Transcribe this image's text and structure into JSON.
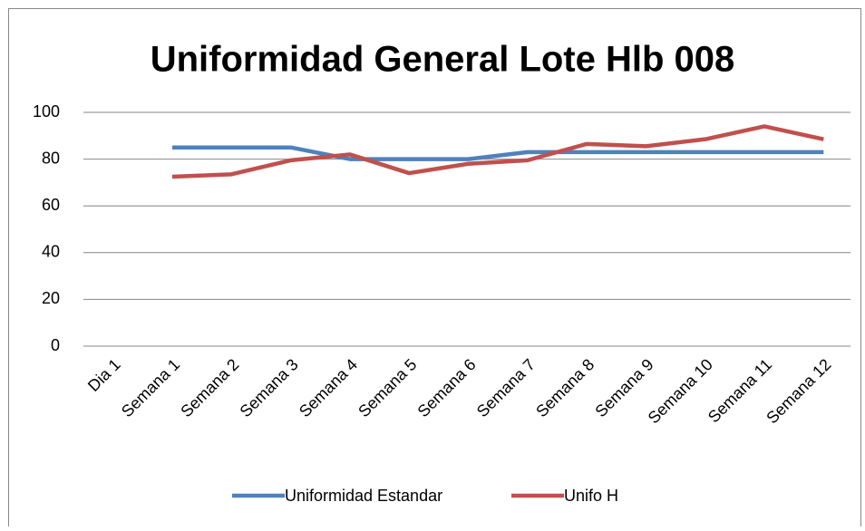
{
  "chart_data": {
    "type": "line",
    "title": "Uniformidad General Lote Hlb 008",
    "categories": [
      "Dia 1",
      "Semana 1",
      "Semana 2",
      "Semana 3",
      "Semana 4",
      "Semana 5",
      "Semana 6",
      "Semana 7",
      "Semana 8",
      "Semana 9",
      "Semana 10",
      "Semana 11",
      "Semana 12"
    ],
    "series": [
      {
        "name": "Uniformidad Estandar",
        "color": "#4f81bd",
        "values": [
          null,
          85,
          85,
          85,
          80,
          80,
          80,
          83,
          83,
          83,
          83,
          83,
          83
        ]
      },
      {
        "name": "Unifo H",
        "color": "#c0504d",
        "values": [
          null,
          72.5,
          73.5,
          79.5,
          82,
          74,
          78,
          79.5,
          86.5,
          85.5,
          88.5,
          94,
          88.5
        ]
      }
    ],
    "ylim": [
      0,
      100
    ],
    "yticks": [
      0,
      20,
      40,
      60,
      80,
      100
    ],
    "grid": true,
    "legend": "bottom"
  }
}
